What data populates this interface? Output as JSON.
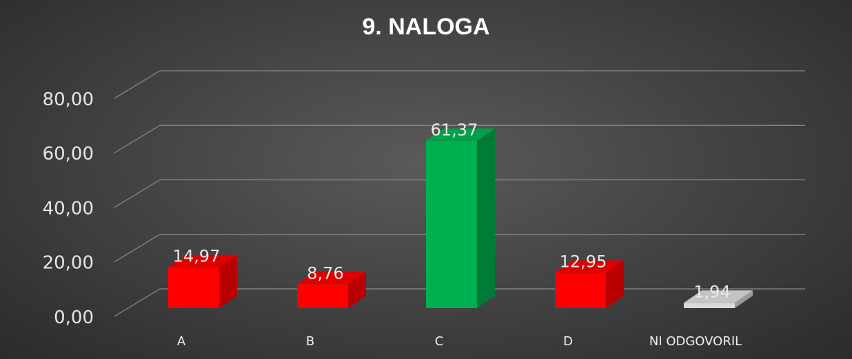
{
  "chart_data": {
    "type": "bar",
    "title": "9. NALOGA",
    "categories": [
      "A",
      "B",
      "C",
      "D",
      "NI ODGOVORIL"
    ],
    "values": [
      14.97,
      8.76,
      61.37,
      12.95,
      1.94
    ],
    "value_labels": [
      "14,97",
      "8,76",
      "61,37",
      "12,95",
      "1,94"
    ],
    "ylim": [
      0,
      80
    ],
    "yticks": [
      0,
      20,
      40,
      60,
      80
    ],
    "ytick_labels": [
      "0,00",
      "20,00",
      "40,00",
      "60,00",
      "80,00"
    ],
    "grid": true,
    "style": "3d-column",
    "bar_colors": [
      "#ff0000",
      "#ff0000",
      "#00b050",
      "#ff0000",
      "#d9d9d9"
    ],
    "bar_side_colors": [
      "#b80000",
      "#b80000",
      "#007a37",
      "#b80000",
      "#9a9a9a"
    ],
    "bar_top_colors": [
      "#e00000",
      "#e00000",
      "#00a247",
      "#e00000",
      "#c4c4c4"
    ]
  }
}
